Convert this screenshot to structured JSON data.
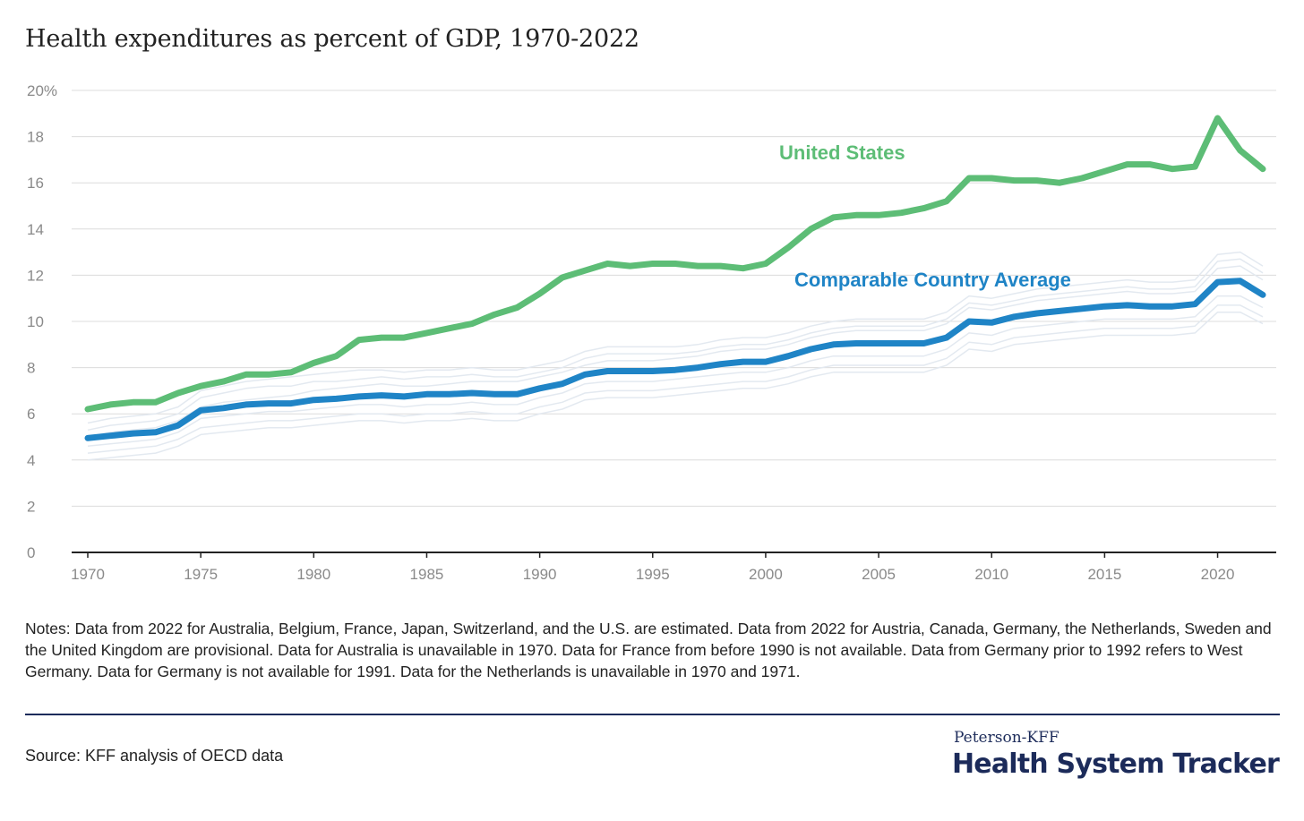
{
  "header": {
    "title": "Health expenditures as percent of GDP, 1970-2022"
  },
  "notes": "Notes: Data from 2022 for Australia, Belgium, France, Japan, Switzerland, and the U.S. are estimated. Data from 2022 for Austria, Canada, Germany, the Netherlands, Sweden and the United Kingdom are provisional. Data for Australia is unavailable in 1970. Data for France from before 1990 is not available. Data from Germany prior to 1992 refers to West Germany. Data for Germany is not available for 1991. Data for the Netherlands is unavailable in 1970 and 1971.",
  "source": "Source: KFF analysis of OECD data",
  "logo": {
    "top": "Peterson-KFF",
    "main": "Health System Tracker"
  },
  "colors": {
    "us": "#5dbd76",
    "comparable": "#1f84c6",
    "background_series": "#e3e9f0",
    "grid": "#dcdcdc",
    "axis": "#222222",
    "tick_text": "#8a8a8a"
  },
  "chart_data": {
    "type": "line",
    "title": "Health expenditures as percent of GDP, 1970-2022",
    "xlabel": "",
    "ylabel": "",
    "xlim": [
      1970,
      2022
    ],
    "ylim": [
      0,
      20
    ],
    "x_ticks": [
      1970,
      1975,
      1980,
      1985,
      1990,
      1995,
      2000,
      2005,
      2010,
      2015,
      2020
    ],
    "y_ticks": [
      0,
      2,
      4,
      6,
      8,
      10,
      12,
      14,
      16,
      18,
      20
    ],
    "y_tick_labels": [
      "0",
      "2",
      "4",
      "6",
      "8",
      "10",
      "12",
      "14",
      "16",
      "18",
      "20%"
    ],
    "grid": true,
    "legend": "direct labels",
    "x": [
      1970,
      1971,
      1972,
      1973,
      1974,
      1975,
      1976,
      1977,
      1978,
      1979,
      1980,
      1981,
      1982,
      1983,
      1984,
      1985,
      1986,
      1987,
      1988,
      1989,
      1990,
      1991,
      1992,
      1993,
      1994,
      1995,
      1996,
      1997,
      1998,
      1999,
      2000,
      2001,
      2002,
      2003,
      2004,
      2005,
      2006,
      2007,
      2008,
      2009,
      2010,
      2011,
      2012,
      2013,
      2014,
      2015,
      2016,
      2017,
      2018,
      2019,
      2020,
      2021,
      2022
    ],
    "series": [
      {
        "name": "United States",
        "values": [
          6.2,
          6.4,
          6.5,
          6.5,
          6.9,
          7.2,
          7.4,
          7.7,
          7.7,
          7.8,
          8.2,
          8.5,
          9.2,
          9.3,
          9.3,
          9.5,
          9.7,
          9.9,
          10.3,
          10.6,
          11.2,
          11.9,
          12.2,
          12.5,
          12.4,
          12.5,
          12.5,
          12.4,
          12.4,
          12.3,
          12.5,
          13.2,
          14.0,
          14.5,
          14.6,
          14.6,
          14.7,
          14.9,
          15.2,
          16.2,
          16.2,
          16.1,
          16.1,
          16.0,
          16.2,
          16.5,
          16.8,
          16.8,
          16.6,
          16.7,
          18.8,
          17.4,
          16.6
        ]
      },
      {
        "name": "Comparable Country Average",
        "values": [
          4.95,
          5.05,
          5.15,
          5.2,
          5.5,
          6.15,
          6.25,
          6.4,
          6.45,
          6.45,
          6.6,
          6.65,
          6.75,
          6.8,
          6.75,
          6.85,
          6.85,
          6.9,
          6.85,
          6.85,
          7.1,
          7.3,
          7.7,
          7.85,
          7.85,
          7.85,
          7.9,
          8.0,
          8.15,
          8.25,
          8.25,
          8.5,
          8.8,
          9.0,
          9.05,
          9.05,
          9.05,
          9.05,
          9.3,
          10.0,
          9.95,
          10.2,
          10.35,
          10.45,
          10.55,
          10.65,
          10.7,
          10.65,
          10.65,
          10.75,
          11.7,
          11.75,
          11.15
        ]
      }
    ],
    "background_series": [
      {
        "values": [
          5.0,
          5.2,
          5.3,
          5.4,
          5.7,
          6.3,
          6.5,
          6.6,
          6.7,
          6.8,
          7.0,
          7.1,
          7.2,
          7.3,
          7.2,
          7.2,
          7.3,
          7.4,
          7.4,
          7.4,
          7.6,
          7.8,
          8.1,
          8.3,
          8.3,
          8.3,
          8.4,
          8.5,
          8.7,
          8.8,
          8.8,
          9.0,
          9.3,
          9.5,
          9.6,
          9.6,
          9.6,
          9.6,
          9.9,
          10.6,
          10.5,
          10.7,
          10.9,
          11.0,
          11.1,
          11.2,
          11.3,
          11.2,
          11.2,
          11.3,
          12.3,
          12.4,
          11.8
        ]
      },
      {
        "values": [
          4.6,
          4.7,
          4.8,
          4.9,
          5.2,
          5.8,
          5.9,
          6.0,
          6.1,
          6.1,
          6.2,
          6.3,
          6.4,
          6.4,
          6.3,
          6.4,
          6.4,
          6.5,
          6.4,
          6.4,
          6.7,
          6.9,
          7.3,
          7.4,
          7.4,
          7.4,
          7.5,
          7.6,
          7.7,
          7.8,
          7.8,
          8.0,
          8.3,
          8.5,
          8.5,
          8.5,
          8.5,
          8.5,
          8.8,
          9.5,
          9.4,
          9.7,
          9.8,
          9.9,
          10.0,
          10.1,
          10.1,
          10.1,
          10.1,
          10.2,
          11.1,
          11.1,
          10.6
        ]
      },
      {
        "values": [
          5.3,
          5.5,
          5.6,
          5.7,
          6.0,
          6.7,
          6.9,
          7.1,
          7.2,
          7.2,
          7.4,
          7.4,
          7.5,
          7.6,
          7.5,
          7.6,
          7.6,
          7.7,
          7.6,
          7.6,
          7.8,
          8.0,
          8.4,
          8.6,
          8.6,
          8.6,
          8.6,
          8.7,
          8.9,
          9.0,
          9.0,
          9.2,
          9.5,
          9.7,
          9.8,
          9.8,
          9.8,
          9.8,
          10.1,
          10.8,
          10.7,
          10.9,
          11.1,
          11.2,
          11.3,
          11.4,
          11.5,
          11.4,
          11.4,
          11.5,
          12.6,
          12.7,
          12.1
        ]
      },
      {
        "values": [
          4.3,
          4.4,
          4.5,
          4.6,
          4.9,
          5.4,
          5.5,
          5.6,
          5.7,
          5.7,
          5.8,
          5.9,
          6.0,
          6.0,
          5.9,
          6.0,
          6.0,
          6.1,
          6.0,
          6.0,
          6.3,
          6.5,
          6.9,
          7.0,
          7.0,
          7.0,
          7.1,
          7.2,
          7.3,
          7.4,
          7.4,
          7.6,
          7.9,
          8.1,
          8.1,
          8.1,
          8.1,
          8.1,
          8.4,
          9.1,
          9.0,
          9.3,
          9.4,
          9.5,
          9.6,
          9.7,
          9.7,
          9.7,
          9.7,
          9.8,
          10.7,
          10.7,
          10.2
        ]
      },
      {
        "values": [
          5.6,
          5.8,
          5.9,
          6.0,
          6.3,
          7.0,
          7.2,
          7.4,
          7.5,
          7.6,
          7.7,
          7.8,
          7.9,
          7.9,
          7.8,
          7.9,
          7.9,
          8.0,
          7.9,
          7.9,
          8.1,
          8.3,
          8.7,
          8.9,
          8.9,
          8.9,
          8.9,
          9.0,
          9.2,
          9.3,
          9.3,
          9.5,
          9.8,
          10.0,
          10.1,
          10.1,
          10.1,
          10.1,
          10.4,
          11.1,
          11.0,
          11.2,
          11.4,
          11.5,
          11.6,
          11.7,
          11.8,
          11.7,
          11.7,
          11.8,
          12.9,
          13.0,
          12.4
        ]
      },
      {
        "values": [
          4.0,
          4.1,
          4.2,
          4.3,
          4.6,
          5.1,
          5.2,
          5.3,
          5.4,
          5.4,
          5.5,
          5.6,
          5.7,
          5.7,
          5.6,
          5.7,
          5.7,
          5.8,
          5.7,
          5.7,
          6.0,
          6.2,
          6.6,
          6.7,
          6.7,
          6.7,
          6.8,
          6.9,
          7.0,
          7.1,
          7.1,
          7.3,
          7.6,
          7.8,
          7.8,
          7.8,
          7.8,
          7.8,
          8.1,
          8.8,
          8.7,
          9.0,
          9.1,
          9.2,
          9.3,
          9.4,
          9.4,
          9.4,
          9.4,
          9.5,
          10.4,
          10.4,
          9.9
        ]
      }
    ],
    "labels": [
      {
        "series": "United States",
        "text": "United States"
      },
      {
        "series": "Comparable Country Average",
        "text": "Comparable Country Average"
      }
    ]
  }
}
